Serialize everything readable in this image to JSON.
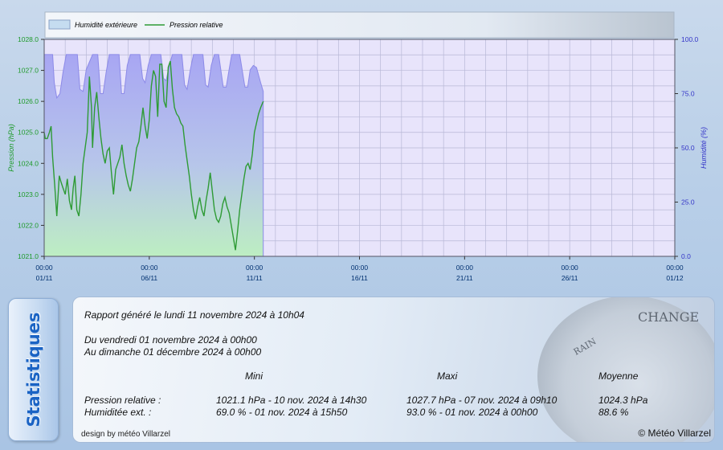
{
  "chart_data": {
    "type": "area-line",
    "legend": [
      {
        "label": "Humidité extérieure",
        "kind": "area",
        "color": "#aaa8f2"
      },
      {
        "label": "Pression relative",
        "kind": "line",
        "color": "#2e9b35"
      }
    ],
    "y_left": {
      "label": "Pression (hPa)",
      "min": 1021.0,
      "max": 1028.0,
      "ticks": [
        "1021.0",
        "1022.0",
        "1023.0",
        "1024.0",
        "1025.0",
        "1026.0",
        "1027.0",
        "1028.0"
      ],
      "color": "#1e9a2a"
    },
    "y_right": {
      "label": "Humidité (%)",
      "min": 0,
      "max": 100,
      "ticks": [
        "0.0",
        "25.0",
        "50.0",
        "75.0",
        "100.0"
      ],
      "color": "#3434c8"
    },
    "x_axis": {
      "min_day": 1,
      "max_day": 31,
      "ticks": [
        {
          "day": 1,
          "time": "00:00",
          "date": "01/11"
        },
        {
          "day": 6,
          "time": "00:00",
          "date": "06/11"
        },
        {
          "day": 11,
          "time": "00:00",
          "date": "11/11"
        },
        {
          "day": 16,
          "time": "00:00",
          "date": "16/11"
        },
        {
          "day": 21,
          "time": "00:00",
          "date": "21/11"
        },
        {
          "day": 26,
          "time": "00:00",
          "date": "26/11"
        },
        {
          "day": 31,
          "time": "00:00",
          "date": "01/12"
        }
      ]
    },
    "humidity": {
      "x": [
        1,
        1.4,
        1.48,
        1.6,
        1.75,
        1.9,
        2.05,
        2.3,
        2.58,
        2.7,
        2.85,
        3.0,
        3.3,
        3.55,
        3.68,
        3.8,
        3.95,
        4.1,
        4.3,
        4.56,
        4.68,
        4.8,
        4.95,
        5.1,
        5.3,
        5.55,
        5.68,
        5.8,
        5.95,
        6.1,
        6.3,
        6.55,
        6.68,
        6.8,
        6.95,
        7.1,
        7.3,
        7.55,
        7.68,
        7.8,
        7.95,
        8.1,
        8.3,
        8.55,
        8.68,
        8.8,
        8.95,
        9.1,
        9.3,
        9.52,
        9.66,
        9.78,
        9.92,
        10.05,
        10.3,
        10.55,
        10.68,
        10.8,
        10.95,
        11.1,
        11.3,
        11.42
      ],
      "y": [
        93,
        93,
        80,
        73,
        75,
        85,
        93,
        93,
        93,
        77,
        76,
        86,
        93,
        93,
        75,
        75,
        85,
        93,
        93,
        93,
        75,
        75,
        88,
        93,
        93,
        93,
        82,
        80,
        88,
        93,
        93,
        93,
        82,
        81,
        88,
        93,
        93,
        93,
        79,
        77,
        86,
        93,
        93,
        93,
        79,
        78,
        88,
        93,
        93,
        78,
        78,
        85,
        93,
        93,
        93,
        78,
        78,
        86,
        88,
        87,
        80,
        76
      ]
    },
    "pressure": {
      "x": [
        1,
        1.05,
        1.15,
        1.25,
        1.33,
        1.4,
        1.5,
        1.6,
        1.72,
        1.8,
        1.9,
        2.0,
        2.1,
        2.2,
        2.3,
        2.38,
        2.46,
        2.55,
        2.65,
        2.75,
        2.85,
        2.95,
        3.05,
        3.15,
        3.25,
        3.3,
        3.4,
        3.5,
        3.6,
        3.7,
        3.8,
        3.9,
        4.0,
        4.1,
        4.2,
        4.3,
        4.4,
        4.5,
        4.6,
        4.7,
        4.8,
        4.9,
        5.0,
        5.1,
        5.2,
        5.3,
        5.4,
        5.5,
        5.6,
        5.7,
        5.8,
        5.9,
        6.0,
        6.1,
        6.2,
        6.3,
        6.4,
        6.5,
        6.6,
        6.7,
        6.8,
        6.9,
        7.0,
        7.1,
        7.2,
        7.3,
        7.4,
        7.5,
        7.6,
        7.7,
        7.8,
        7.9,
        8.0,
        8.1,
        8.2,
        8.3,
        8.4,
        8.5,
        8.6,
        8.7,
        8.8,
        8.9,
        9.0,
        9.1,
        9.2,
        9.3,
        9.4,
        9.5,
        9.6,
        9.7,
        9.8,
        9.9,
        10.0,
        10.1,
        10.2,
        10.3,
        10.4,
        10.5,
        10.6,
        10.7,
        10.8,
        10.9,
        11.0,
        11.1,
        11.2,
        11.3,
        11.42
      ],
      "y": [
        1025.0,
        1024.8,
        1024.8,
        1025.0,
        1025.2,
        1024.2,
        1023.3,
        1022.3,
        1023.6,
        1023.4,
        1023.2,
        1023.0,
        1023.5,
        1022.8,
        1022.5,
        1023.2,
        1023.6,
        1022.5,
        1022.3,
        1023.0,
        1024.0,
        1024.5,
        1025.0,
        1026.8,
        1025.8,
        1024.5,
        1025.8,
        1026.3,
        1025.5,
        1024.8,
        1024.3,
        1024.0,
        1024.4,
        1024.5,
        1023.7,
        1023.0,
        1023.8,
        1024.0,
        1024.2,
        1024.6,
        1024.0,
        1023.6,
        1023.3,
        1023.1,
        1023.5,
        1024.0,
        1024.5,
        1024.7,
        1025.2,
        1025.8,
        1025.2,
        1024.8,
        1025.4,
        1026.5,
        1027.0,
        1026.8,
        1025.5,
        1027.2,
        1027.2,
        1026.0,
        1025.8,
        1027.1,
        1027.3,
        1026.4,
        1025.8,
        1025.6,
        1025.5,
        1025.3,
        1025.2,
        1024.6,
        1024.1,
        1023.6,
        1023.0,
        1022.5,
        1022.2,
        1022.6,
        1022.9,
        1022.5,
        1022.3,
        1022.8,
        1023.2,
        1023.7,
        1023.1,
        1022.5,
        1022.2,
        1022.1,
        1022.3,
        1022.7,
        1022.9,
        1022.6,
        1022.4,
        1022.0,
        1021.6,
        1021.2,
        1021.8,
        1022.5,
        1023.0,
        1023.5,
        1023.9,
        1024.0,
        1023.8,
        1024.3,
        1025.0,
        1025.3,
        1025.6,
        1025.8,
        1026.0
      ]
    }
  },
  "stats": {
    "tab_label": "Statistiques",
    "generated": "Rapport généré le lundi 11 novembre 2024 à 10h04",
    "from": "Du vendredi 01 novembre 2024 à 00h00",
    "to": "Au dimanche 01 décembre 2024 à 00h00",
    "col_min": "Mini",
    "col_max": "Maxi",
    "col_avg": "Moyenne",
    "rows": [
      {
        "label": "Pression relative :",
        "min": "1021.1 hPa - 10 nov. 2024 à 14h30",
        "max": "1027.7 hPa - 07 nov. 2024 à 09h10",
        "avg": "1024.3 hPa"
      },
      {
        "label": "Humiditée ext. :",
        "min": "69.0 % - 01 nov. 2024 à 15h50",
        "max": "93.0 % - 01 nov. 2024 à 00h00",
        "avg": "88.6 %"
      }
    ],
    "credit_left": "design by météo Villarzel",
    "credit_right": "© Météo Villarzel"
  },
  "decor": {
    "gauge_change": "CHANGE",
    "gauge_rain": "RAIN"
  }
}
